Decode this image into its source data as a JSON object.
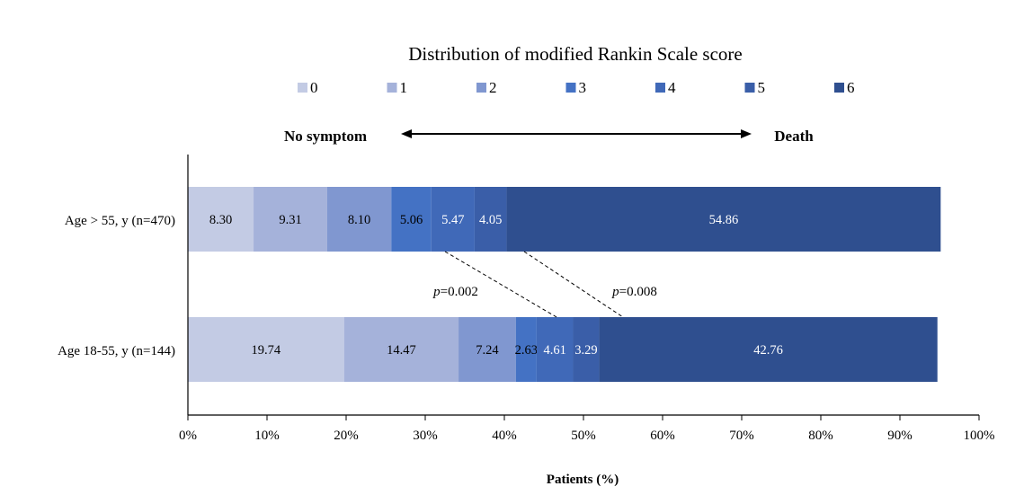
{
  "chart_data": {
    "type": "bar",
    "orientation": "horizontal",
    "stacked": true,
    "title": "Distribution of modified Rankin Scale score",
    "xlabel": "Patients (%)",
    "xlim": [
      0,
      100
    ],
    "xticks": [
      "0%",
      "10%",
      "20%",
      "30%",
      "40%",
      "50%",
      "60%",
      "70%",
      "80%",
      "90%",
      "100%"
    ],
    "legend_position": "top",
    "scale_annotation": {
      "left": "No symptom",
      "right": "Death"
    },
    "categories": [
      "Age > 55, y (n=470)",
      "Age 18-55, y (n=144)"
    ],
    "series": [
      {
        "name": "0",
        "color": "#c3cbe4",
        "values": [
          8.3,
          19.74
        ],
        "labels": [
          "8.30",
          "19.74"
        ]
      },
      {
        "name": "1",
        "color": "#a5b2da",
        "values": [
          9.31,
          14.47
        ],
        "labels": [
          "9.31",
          "14.47"
        ]
      },
      {
        "name": "2",
        "color": "#8097d0",
        "values": [
          8.1,
          7.24
        ],
        "labels": [
          "8.10",
          "7.24"
        ]
      },
      {
        "name": "3",
        "color": "#4472c4",
        "values": [
          5.06,
          2.63
        ],
        "labels": [
          "5.06",
          "2.63"
        ]
      },
      {
        "name": "4",
        "color": "#4069b8",
        "values": [
          5.47,
          4.61
        ],
        "labels": [
          "5.47",
          "4.61"
        ]
      },
      {
        "name": "5",
        "color": "#3a5ea8",
        "values": [
          4.05,
          3.29
        ],
        "labels": [
          "4.05",
          "3.29"
        ]
      },
      {
        "name": "6",
        "color": "#2f4f8f",
        "values": [
          54.86,
          42.76
        ],
        "labels": [
          "54.86",
          "42.76"
        ]
      }
    ],
    "comparisons": [
      {
        "prefix": "p",
        "text": "=0.002",
        "from_cumulative": [
          32.5,
          46.6
        ]
      },
      {
        "prefix": "p",
        "text": "=0.008",
        "from_cumulative": [
          42.5,
          55.0
        ]
      }
    ]
  }
}
